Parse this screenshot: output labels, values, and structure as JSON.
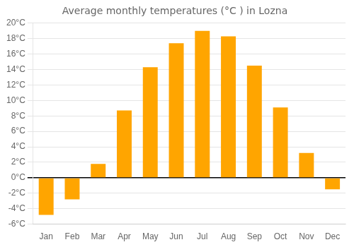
{
  "chart_data": {
    "type": "bar",
    "title": "Average monthly temperatures (°C ) in Lozna",
    "categories": [
      "Jan",
      "Feb",
      "Mar",
      "Apr",
      "May",
      "Jun",
      "Jul",
      "Aug",
      "Sep",
      "Oct",
      "Nov",
      "Dec"
    ],
    "values": [
      -4.8,
      -2.8,
      1.8,
      8.7,
      14.3,
      17.4,
      19.0,
      18.3,
      14.5,
      9.1,
      3.2,
      -1.5
    ],
    "color": "#FFA500",
    "ylim": [
      -6,
      20
    ],
    "yticks": [
      {
        "value": -6,
        "label": "-6°C"
      },
      {
        "value": -4,
        "label": "-4°C"
      },
      {
        "value": -2,
        "label": "-2°C"
      },
      {
        "value": 0,
        "label": "0°C"
      },
      {
        "value": 2,
        "label": "2°C"
      },
      {
        "value": 4,
        "label": "4°C"
      },
      {
        "value": 6,
        "label": "6°C"
      },
      {
        "value": 8,
        "label": "8°C"
      },
      {
        "value": 10,
        "label": "10°C"
      },
      {
        "value": 12,
        "label": "12°C"
      },
      {
        "value": 14,
        "label": "14°C"
      },
      {
        "value": 16,
        "label": "16°C"
      },
      {
        "value": 18,
        "label": "18°C"
      },
      {
        "value": 20,
        "label": "20°C"
      }
    ],
    "grid": true
  }
}
